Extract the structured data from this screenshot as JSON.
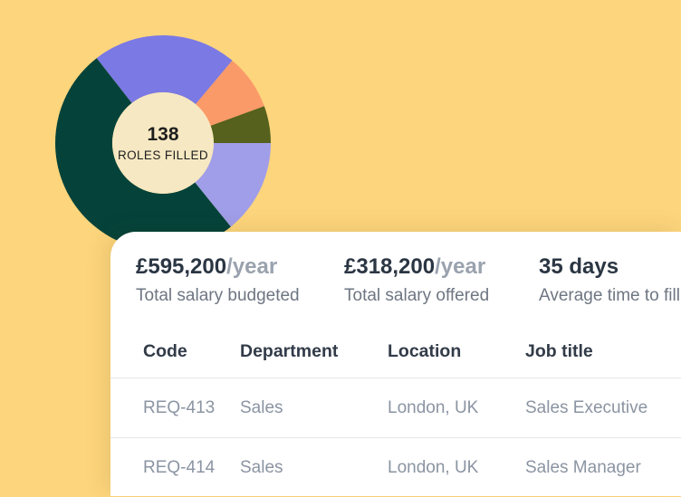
{
  "theme": {
    "background": "#fdd57c",
    "card": "#ffffff",
    "value_text": "#2b3643",
    "suffix_text": "#9aa2ae",
    "muted_text": "#6e7682",
    "header_text": "#323b48",
    "cell_text": "#8b94a2",
    "divider": "#e4e7ea"
  },
  "chart_data": {
    "type": "pie",
    "variant": "donut",
    "center_label": {
      "value": "138",
      "caption": "ROLES FILLED"
    },
    "start_angle_deg": 322,
    "outer_radius": 119,
    "inner_radius": 56,
    "hole_color": "#f6e8c2",
    "segments": [
      {
        "name": "segment-purple",
        "color": "#7b79e4",
        "sweep_deg": 78
      },
      {
        "name": "segment-orange",
        "color": "#fa9a69",
        "sweep_deg": 30
      },
      {
        "name": "segment-olive",
        "color": "#55611c",
        "sweep_deg": 20
      },
      {
        "name": "segment-lavender",
        "color": "#a19ee9",
        "sweep_deg": 51
      },
      {
        "name": "segment-green",
        "color": "#05433a",
        "sweep_deg": 181
      }
    ]
  },
  "stats": [
    {
      "value": "£595,200",
      "suffix": "/year",
      "label": "Total salary budgeted"
    },
    {
      "value": "£318,200",
      "suffix": "/year",
      "label": "Total salary offered"
    },
    {
      "value": "35 days",
      "suffix": "",
      "label": "Average time to fill"
    }
  ],
  "table": {
    "columns": [
      "Code",
      "Department",
      "Location",
      "Job title"
    ],
    "rows": [
      [
        "REQ-413",
        "Sales",
        "London, UK",
        "Sales Executive"
      ],
      [
        "REQ-414",
        "Sales",
        "London, UK",
        "Sales Manager"
      ]
    ]
  }
}
